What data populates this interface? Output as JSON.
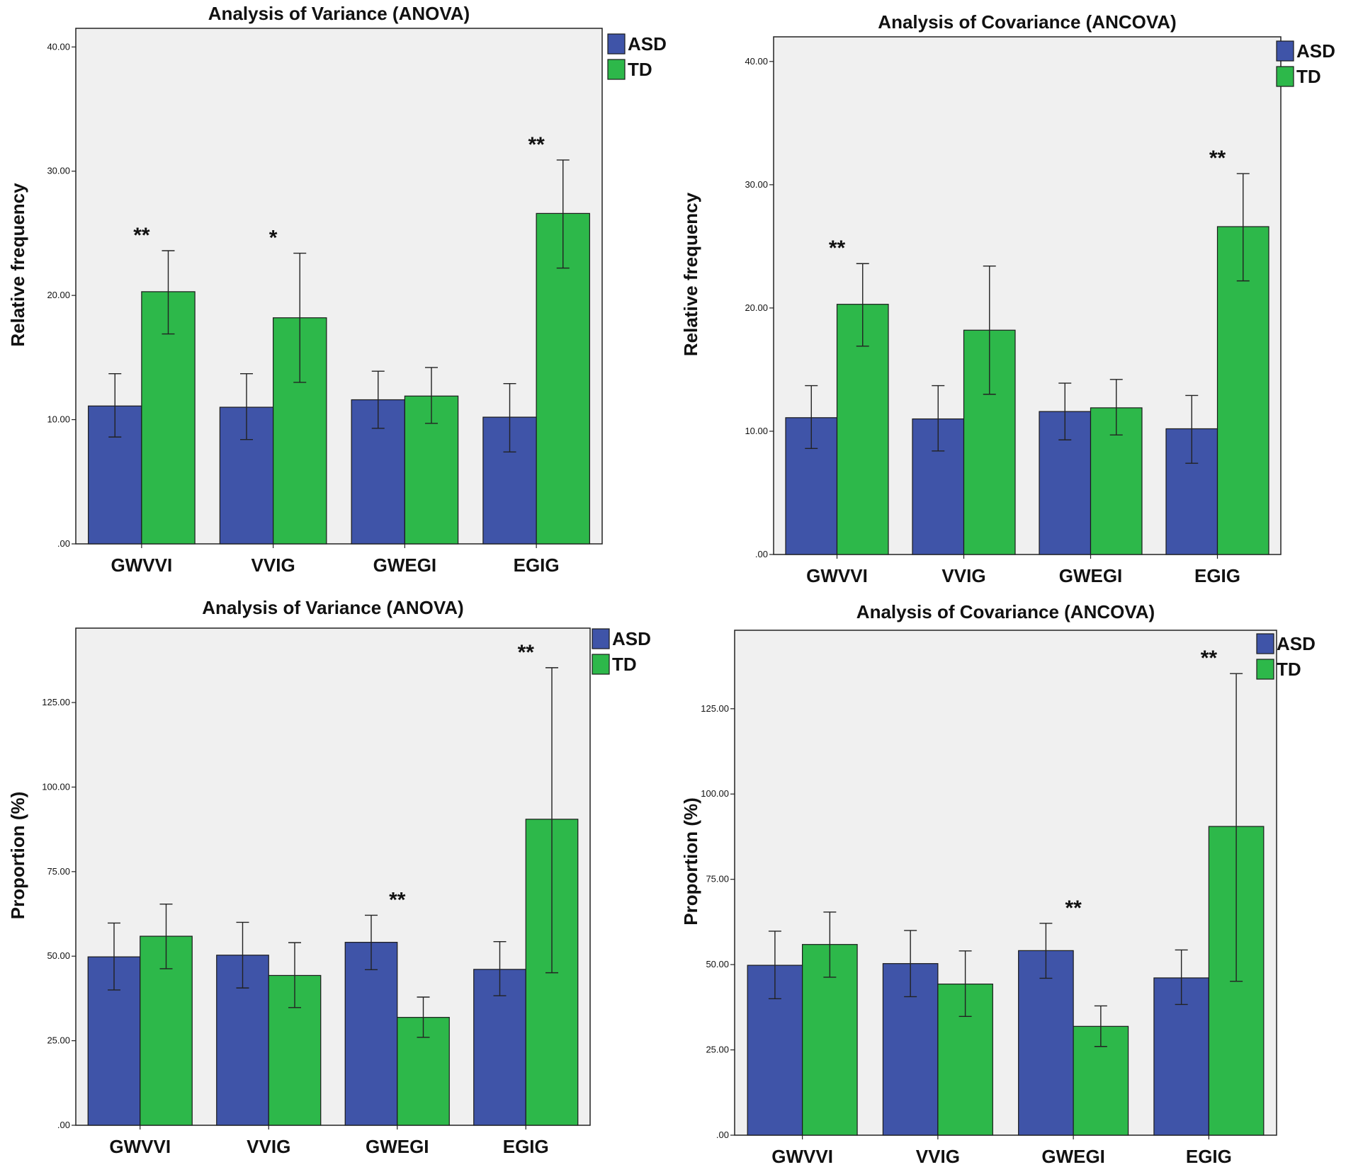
{
  "colors": {
    "ASD": "#3f54a8",
    "TD": "#2db84a",
    "plot_bg": "#f0f0f0"
  },
  "chart_data": [
    {
      "type": "bar",
      "title": "Analysis of Variance (ANOVA)",
      "xlabel": "",
      "ylabel": "Relative frequency",
      "ylim": [
        0,
        41.5
      ],
      "yticks": [
        0,
        10,
        20,
        30,
        40
      ],
      "ytick_labels": [
        ".00",
        "10.00",
        "20.00",
        "30.00",
        "40.00"
      ],
      "categories": [
        "GWVVI",
        "VVIG",
        "GWEGI",
        "EGIG"
      ],
      "legend": [
        "ASD",
        "TD"
      ],
      "legend_position": "top-right outside",
      "series": [
        {
          "name": "ASD",
          "values": [
            11.1,
            11.0,
            11.6,
            10.2
          ],
          "err_low": [
            8.6,
            8.4,
            9.3,
            7.4
          ],
          "err_high": [
            13.7,
            13.7,
            13.9,
            12.9
          ]
        },
        {
          "name": "TD",
          "values": [
            20.3,
            18.2,
            11.9,
            26.6
          ],
          "err_low": [
            16.9,
            13.0,
            9.7,
            22.2
          ],
          "err_high": [
            23.6,
            23.4,
            14.2,
            30.9
          ]
        }
      ],
      "annotations": [
        {
          "category": "GWVVI",
          "text": "**"
        },
        {
          "category": "VVIG",
          "text": "*"
        },
        {
          "category": "EGIG",
          "text": "**"
        }
      ]
    },
    {
      "type": "bar",
      "title": "Analysis of Covariance (ANCOVA)",
      "xlabel": "",
      "ylabel": "Relative frequency",
      "ylim": [
        0,
        42
      ],
      "yticks": [
        0,
        10,
        20,
        30,
        40
      ],
      "ytick_labels": [
        ".00",
        "10.00",
        "20.00",
        "30.00",
        "40.00"
      ],
      "categories": [
        "GWVVI",
        "VVIG",
        "GWEGI",
        "EGIG"
      ],
      "legend": [
        "ASD",
        "TD"
      ],
      "legend_position": "top-right outside",
      "series": [
        {
          "name": "ASD",
          "values": [
            11.1,
            11.0,
            11.6,
            10.2
          ],
          "err_low": [
            8.6,
            8.4,
            9.3,
            7.4
          ],
          "err_high": [
            13.7,
            13.7,
            13.9,
            12.9
          ]
        },
        {
          "name": "TD",
          "values": [
            20.3,
            18.2,
            11.9,
            26.6
          ],
          "err_low": [
            16.9,
            13.0,
            9.7,
            22.2
          ],
          "err_high": [
            23.6,
            23.4,
            14.2,
            30.9
          ]
        }
      ],
      "annotations": [
        {
          "category": "GWVVI",
          "text": "**"
        },
        {
          "category": "EGIG",
          "text": "**"
        }
      ]
    },
    {
      "type": "bar",
      "title": "Analysis of Variance (ANOVA)",
      "xlabel": "",
      "ylabel": "Proportion (%)",
      "ylim": [
        0,
        147
      ],
      "yticks": [
        0,
        25,
        50,
        75,
        100,
        125
      ],
      "ytick_labels": [
        ".00",
        "25.00",
        "50.00",
        "75.00",
        "100.00",
        "125.00"
      ],
      "categories": [
        "GWVVI",
        "VVIG",
        "GWEGI",
        "EGIG"
      ],
      "legend": [
        "ASD",
        "TD"
      ],
      "legend_position": "top-right outside",
      "series": [
        {
          "name": "ASD",
          "values": [
            49.8,
            50.3,
            54.1,
            46.1
          ],
          "err_low": [
            40.0,
            40.6,
            46.0,
            38.3
          ],
          "err_high": [
            59.8,
            60.0,
            62.1,
            54.3
          ]
        },
        {
          "name": "TD",
          "values": [
            55.9,
            44.3,
            31.9,
            90.5
          ],
          "err_low": [
            46.3,
            34.8,
            26.0,
            45.1
          ],
          "err_high": [
            65.4,
            54.0,
            37.9,
            135.3
          ]
        }
      ],
      "annotations": [
        {
          "category": "GWEGI",
          "text": "**"
        },
        {
          "category": "EGIG",
          "text": "**"
        }
      ]
    },
    {
      "type": "bar",
      "title": "Analysis of Covariance (ANCOVA)",
      "xlabel": "",
      "ylabel": "Proportion (%)",
      "ylim": [
        0,
        148
      ],
      "yticks": [
        0,
        25,
        50,
        75,
        100,
        125
      ],
      "ytick_labels": [
        ".00",
        "25.00",
        "50.00",
        "75.00",
        "100.00",
        "125.00"
      ],
      "categories": [
        "GWVVI",
        "VVIG",
        "GWEGI",
        "EGIG"
      ],
      "legend": [
        "ASD",
        "TD"
      ],
      "legend_position": "top-right outside",
      "series": [
        {
          "name": "ASD",
          "values": [
            49.8,
            50.3,
            54.1,
            46.1
          ],
          "err_low": [
            40.0,
            40.6,
            46.0,
            38.3
          ],
          "err_high": [
            59.8,
            60.0,
            62.1,
            54.3
          ]
        },
        {
          "name": "TD",
          "values": [
            55.9,
            44.3,
            31.9,
            90.5
          ],
          "err_low": [
            46.3,
            34.8,
            26.0,
            45.1
          ],
          "err_high": [
            65.4,
            54.0,
            37.9,
            135.3
          ]
        }
      ],
      "annotations": [
        {
          "category": "GWEGI",
          "text": "**"
        },
        {
          "category": "EGIG",
          "text": "**"
        }
      ]
    }
  ]
}
